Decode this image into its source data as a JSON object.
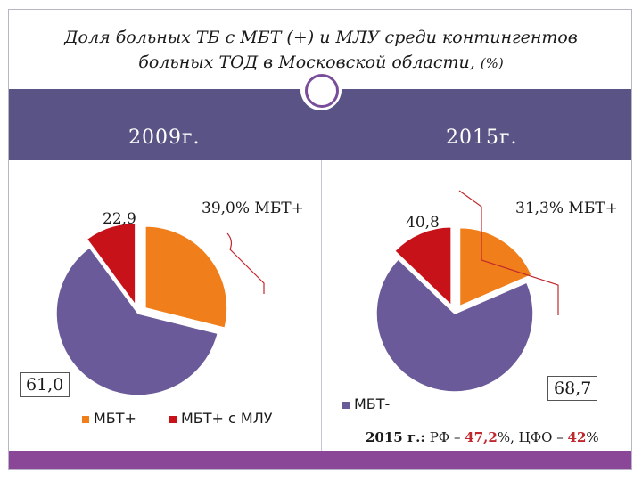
{
  "title": {
    "line1": "Доля больных ТБ с МБТ (+) и МЛУ среди контингентов",
    "line2": "больных ТОД в Московской области,",
    "unit": "(%)"
  },
  "colors": {
    "band": "#5a5486",
    "mbt_plus": "#f07f1b",
    "mbt_plus_mlu": "#c8121a",
    "mbt_minus": "#6b5a99",
    "bottom_bar": "#8b4797"
  },
  "chart_data": [
    {
      "type": "pie",
      "title": "2009г.",
      "bracket_label": "39,0% МБТ+",
      "slices": [
        {
          "name": "МБТ+",
          "value": 28.9,
          "color": "#f07f1b",
          "exploded": true
        },
        {
          "name": "МБТ-",
          "value": 61.0,
          "color": "#6b5a99",
          "exploded": false,
          "label": "61,0"
        },
        {
          "name": "МБТ+ с МЛУ",
          "value": 10.1,
          "color": "#c8121a",
          "exploded": true,
          "label": "22,9"
        }
      ]
    },
    {
      "type": "pie",
      "title": "2015г.",
      "bracket_label": "31,3% МБТ+",
      "slices": [
        {
          "name": "МБТ+",
          "value": 18.5,
          "color": "#f07f1b",
          "exploded": true
        },
        {
          "name": "МБТ-",
          "value": 68.7,
          "color": "#6b5a99",
          "exploded": false,
          "label": "68,7"
        },
        {
          "name": "МБТ+ с МЛУ",
          "value": 12.8,
          "color": "#c8121a",
          "exploded": true,
          "label": "40,8"
        }
      ]
    }
  ],
  "legend": {
    "mbt_plus": "МБТ+",
    "mbt_plus_mlu": "МБТ+ с МЛУ",
    "mbt_minus": "МБТ-"
  },
  "footer": {
    "prefix": "2015 г.:",
    "rf_label": "РФ –",
    "rf_value": "47,2",
    "sep": "%, ЦФО –",
    "cfo_value": "42",
    "suffix": "%"
  }
}
